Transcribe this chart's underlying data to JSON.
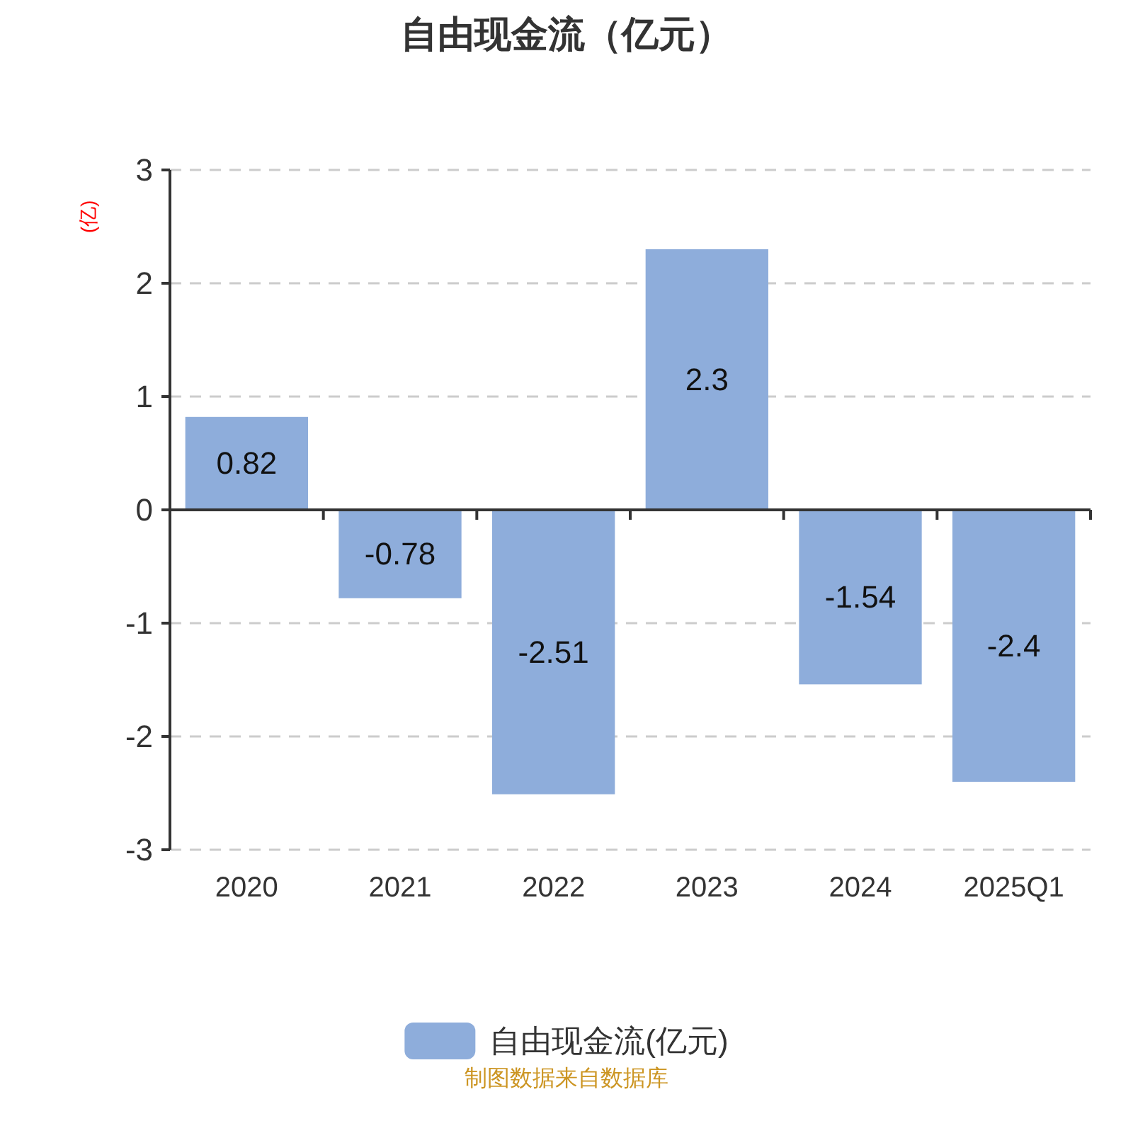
{
  "chart_data": {
    "type": "bar",
    "title": "自由现金流（亿元）",
    "ylabel": "(亿)",
    "categories": [
      "2020",
      "2021",
      "2022",
      "2023",
      "2024",
      "2025Q1"
    ],
    "series": [
      {
        "name": "自由现金流(亿元)",
        "color": "#8eaddb",
        "values": [
          0.82,
          -0.78,
          -2.51,
          2.3,
          -1.54,
          -2.4
        ]
      }
    ],
    "ylim": [
      -3,
      3
    ],
    "yticks": [
      -3,
      -2,
      -1,
      0,
      1,
      2,
      3
    ],
    "grid": "y",
    "legend": "bottom",
    "data_labels": true,
    "annotations": [
      "制图数据来自数据库"
    ]
  }
}
